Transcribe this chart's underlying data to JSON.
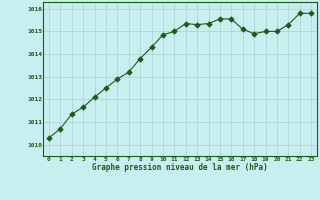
{
  "x": [
    0,
    1,
    2,
    3,
    4,
    5,
    6,
    7,
    8,
    9,
    10,
    11,
    12,
    13,
    14,
    15,
    16,
    17,
    18,
    19,
    20,
    21,
    22,
    23
  ],
  "y": [
    1010.3,
    1010.7,
    1011.35,
    1011.65,
    1012.1,
    1012.5,
    1012.9,
    1013.2,
    1013.8,
    1014.3,
    1014.85,
    1015.0,
    1015.35,
    1015.3,
    1015.35,
    1015.55,
    1015.55,
    1015.1,
    1014.9,
    1015.0,
    1015.0,
    1015.3,
    1015.8,
    1015.8
  ],
  "line_color": "#1a5c1a",
  "marker_color": "#1a5c1a",
  "bg_color": "#c8eef0",
  "grid_color": "#aacfcf",
  "xlabel": "Graphe pression niveau de la mer (hPa)",
  "xlabel_color": "#1a5c1a",
  "tick_color": "#1a5c1a",
  "ylim": [
    1009.5,
    1016.3
  ],
  "xlim": [
    -0.5,
    23.5
  ],
  "yticks": [
    1010,
    1011,
    1012,
    1013,
    1014,
    1015,
    1016
  ],
  "xticks": [
    0,
    1,
    2,
    3,
    4,
    5,
    6,
    7,
    8,
    9,
    10,
    11,
    12,
    13,
    14,
    15,
    16,
    17,
    18,
    19,
    20,
    21,
    22,
    23
  ],
  "line_width": 0.8,
  "marker_size": 2.8,
  "marker_style": "D"
}
